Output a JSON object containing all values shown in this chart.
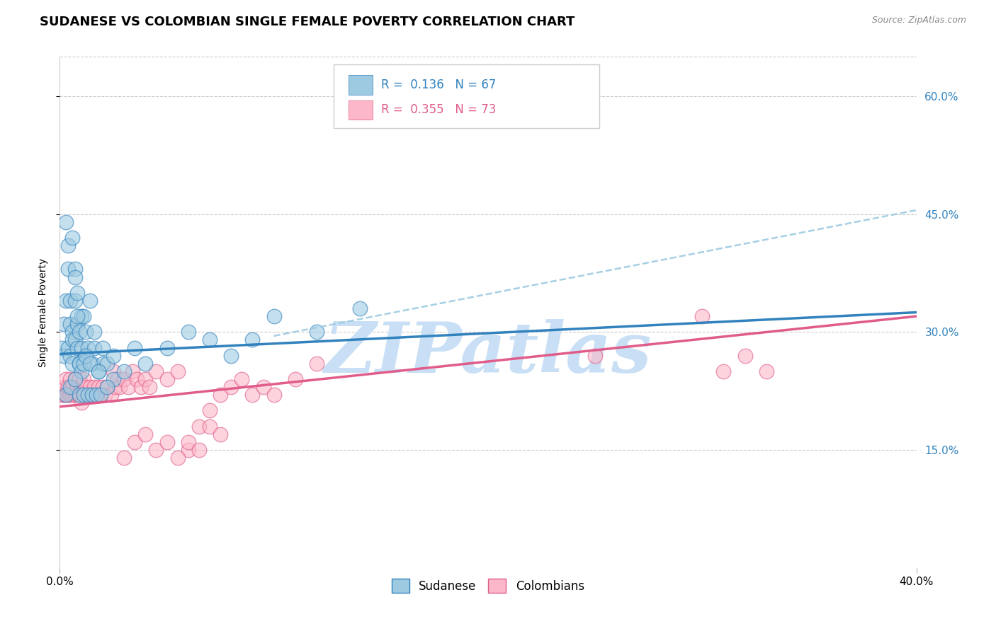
{
  "title": "SUDANESE VS COLOMBIAN SINGLE FEMALE POVERTY CORRELATION CHART",
  "source_text": "Source: ZipAtlas.com",
  "ylabel": "Single Female Poverty",
  "xlim": [
    0.0,
    0.4
  ],
  "ylim": [
    0.0,
    0.65
  ],
  "xtick_positions": [
    0.0,
    0.4
  ],
  "xticklabels": [
    "0.0%",
    "40.0%"
  ],
  "yticks_right": [
    0.15,
    0.3,
    0.45,
    0.6
  ],
  "ytick_labels_right": [
    "15.0%",
    "30.0%",
    "45.0%",
    "60.0%"
  ],
  "sudanese_color": "#9ecae1",
  "colombian_color": "#fcb8c8",
  "sudanese_line_color": "#3182bd",
  "colombian_line_color": "#e05c8a",
  "dashed_line_color": "#9ecae1",
  "background_color": "#ffffff",
  "grid_color": "#cccccc",
  "watermark_text": "ZIPatlas",
  "watermark_color": "#c8dff5",
  "title_fontsize": 13,
  "source_fontsize": 9,
  "axis_label_fontsize": 10,
  "tick_fontsize": 11,
  "legend_R1": "R =  0.136   N = 67",
  "legend_R2": "R =  0.355   N = 73",
  "legend_color1": "#3182bd",
  "legend_color2": "#e05c8a",
  "sudanese_x": [
    0.001,
    0.002,
    0.002,
    0.003,
    0.004,
    0.004,
    0.005,
    0.005,
    0.005,
    0.006,
    0.006,
    0.006,
    0.007,
    0.007,
    0.007,
    0.008,
    0.008,
    0.008,
    0.009,
    0.009,
    0.01,
    0.01,
    0.011,
    0.012,
    0.013,
    0.014,
    0.015,
    0.016,
    0.018,
    0.02,
    0.022,
    0.025,
    0.003,
    0.004,
    0.006,
    0.007,
    0.008,
    0.009,
    0.01,
    0.011,
    0.012,
    0.014,
    0.016,
    0.018,
    0.02,
    0.025,
    0.03,
    0.035,
    0.04,
    0.05,
    0.06,
    0.07,
    0.08,
    0.09,
    0.1,
    0.12,
    0.14,
    0.003,
    0.005,
    0.007,
    0.009,
    0.011,
    0.013,
    0.015,
    0.017,
    0.019,
    0.022
  ],
  "sudanese_y": [
    0.28,
    0.27,
    0.31,
    0.34,
    0.38,
    0.28,
    0.34,
    0.27,
    0.31,
    0.3,
    0.26,
    0.29,
    0.29,
    0.34,
    0.38,
    0.28,
    0.31,
    0.35,
    0.26,
    0.3,
    0.28,
    0.32,
    0.32,
    0.3,
    0.28,
    0.34,
    0.26,
    0.28,
    0.25,
    0.26,
    0.26,
    0.27,
    0.44,
    0.41,
    0.42,
    0.37,
    0.32,
    0.26,
    0.25,
    0.26,
    0.27,
    0.26,
    0.3,
    0.25,
    0.28,
    0.24,
    0.25,
    0.28,
    0.26,
    0.28,
    0.3,
    0.29,
    0.27,
    0.29,
    0.32,
    0.3,
    0.33,
    0.22,
    0.23,
    0.24,
    0.22,
    0.22,
    0.22,
    0.22,
    0.22,
    0.22,
    0.23
  ],
  "colombian_x": [
    0.001,
    0.002,
    0.002,
    0.003,
    0.003,
    0.004,
    0.004,
    0.005,
    0.005,
    0.006,
    0.006,
    0.007,
    0.007,
    0.008,
    0.008,
    0.009,
    0.009,
    0.01,
    0.01,
    0.011,
    0.011,
    0.012,
    0.013,
    0.014,
    0.015,
    0.016,
    0.017,
    0.018,
    0.019,
    0.02,
    0.021,
    0.022,
    0.024,
    0.025,
    0.026,
    0.027,
    0.028,
    0.03,
    0.032,
    0.034,
    0.036,
    0.038,
    0.04,
    0.042,
    0.045,
    0.05,
    0.055,
    0.06,
    0.065,
    0.07,
    0.075,
    0.08,
    0.085,
    0.09,
    0.095,
    0.1,
    0.11,
    0.12,
    0.03,
    0.035,
    0.04,
    0.045,
    0.05,
    0.055,
    0.06,
    0.065,
    0.07,
    0.075,
    0.25,
    0.3,
    0.31,
    0.32,
    0.33
  ],
  "colombian_y": [
    0.22,
    0.22,
    0.23,
    0.22,
    0.24,
    0.22,
    0.23,
    0.22,
    0.24,
    0.22,
    0.23,
    0.22,
    0.24,
    0.22,
    0.23,
    0.22,
    0.24,
    0.21,
    0.23,
    0.22,
    0.24,
    0.23,
    0.22,
    0.23,
    0.22,
    0.23,
    0.22,
    0.23,
    0.22,
    0.23,
    0.22,
    0.23,
    0.22,
    0.25,
    0.23,
    0.24,
    0.23,
    0.24,
    0.23,
    0.25,
    0.24,
    0.23,
    0.24,
    0.23,
    0.25,
    0.24,
    0.25,
    0.15,
    0.18,
    0.2,
    0.22,
    0.23,
    0.24,
    0.22,
    0.23,
    0.22,
    0.24,
    0.26,
    0.14,
    0.16,
    0.17,
    0.15,
    0.16,
    0.14,
    0.16,
    0.15,
    0.18,
    0.17,
    0.27,
    0.32,
    0.25,
    0.27,
    0.25
  ],
  "sudanese_trend_x": [
    0.0,
    0.4
  ],
  "sudanese_trend_y": [
    0.272,
    0.325
  ],
  "colombian_trend_x": [
    0.0,
    0.4
  ],
  "colombian_trend_y": [
    0.205,
    0.32
  ],
  "dashed_trend_x": [
    0.1,
    0.4
  ],
  "dashed_trend_y": [
    0.295,
    0.455
  ]
}
